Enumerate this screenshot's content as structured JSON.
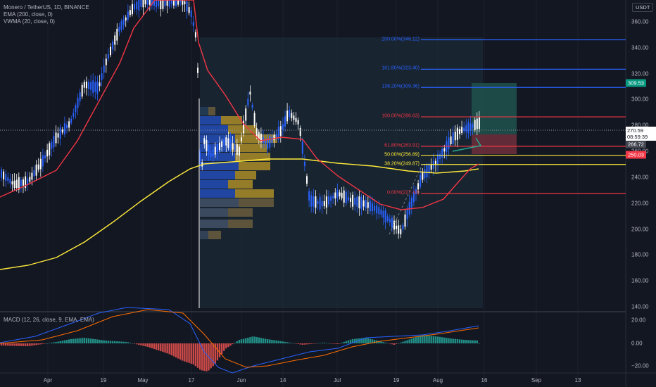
{
  "legend": {
    "symbol": "Monero / TetherUS, 1D, BINANCE",
    "ema": "EMA (200, close, 0)",
    "vwma": "VWMA (20, close, 0)"
  },
  "macd_legend": "MACD (12, 26, close, 9, EMA, EMA)",
  "currency": "USDT",
  "price_axis": [
    "360.00",
    "340.00",
    "320.00",
    "300.00",
    "280.00",
    "260.00",
    "240.00",
    "220.00",
    "200.00",
    "180.00",
    "160.00",
    "140.00"
  ],
  "macd_axis": [
    "20.00",
    "0.00",
    "−20.00"
  ],
  "time_axis": [
    "Apr",
    "19",
    "May",
    "17",
    "Jun",
    "14",
    "Jul",
    "19",
    "Aug",
    "16",
    "Sep",
    "13"
  ],
  "fib_levels": [
    {
      "label": "200.00%(346.12)",
      "price": 346.12,
      "color": "#2962ff"
    },
    {
      "label": "161.80%(323.40)",
      "price": 323.4,
      "color": "#2962ff"
    },
    {
      "label": "138.20%(309.36)",
      "price": 309.36,
      "color": "#2962ff"
    },
    {
      "label": "100.00%(286.63)",
      "price": 286.63,
      "color": "#f23645"
    },
    {
      "label": "61.80%(263.91)",
      "price": 263.91,
      "color": "#f23645"
    },
    {
      "label": "50.00%(256.89)",
      "price": 256.89,
      "color": "#ffeb3b"
    },
    {
      "label": "38.20%(249.87)",
      "price": 249.87,
      "color": "#ffeb3b"
    },
    {
      "label": "0.00%(227.44)",
      "price": 227.44,
      "color": "#f23645"
    }
  ],
  "price_tags": {
    "target": {
      "value": "309.53",
      "color": "#089981"
    },
    "entry": {
      "value": "266.72",
      "color": "#434651"
    },
    "stop": {
      "value": "250.03",
      "color": "#f23645"
    }
  },
  "last_price": {
    "price": "270.59",
    "countdown": "08:59:39"
  },
  "colors": {
    "background": "#131722",
    "up": "#2962ff",
    "down": "#ffffff",
    "ema": "#ffeb3b",
    "vwma": "#f23645",
    "macd_up": "#26a69a",
    "macd_down": "#ef5350"
  }
}
